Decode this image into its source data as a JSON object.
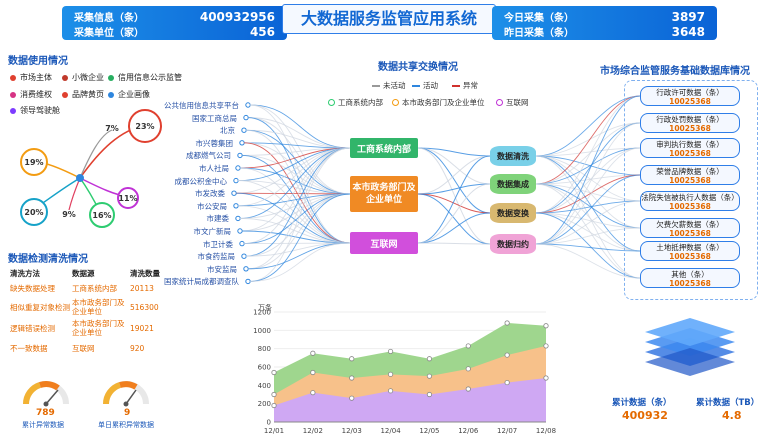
{
  "header": {
    "title": "大数据服务监管应用系统",
    "left": [
      {
        "label": "采集信息（条）",
        "value": "400932956"
      },
      {
        "label": "采集单位（家）",
        "value": "456"
      }
    ],
    "right": [
      {
        "label": "今日采集（条）",
        "value": "3897"
      },
      {
        "label": "昨日采集（条）",
        "value": "3648"
      }
    ]
  },
  "usage": {
    "title": "数据使用情况",
    "legend": [
      {
        "label": "市场主体",
        "color": "#e0402f"
      },
      {
        "label": "小微企业",
        "color": "#c0392b"
      },
      {
        "label": "信用信息公示监管",
        "color": "#27ae60"
      },
      {
        "label": "消费维权",
        "color": "#d63384"
      },
      {
        "label": "品牌黄页",
        "color": "#e0402f"
      },
      {
        "label": "企业画像",
        "color": "#2e86de"
      },
      {
        "label": "领导驾驶舱",
        "color": "#7d3cff"
      }
    ],
    "bubbles": [
      {
        "pct": "23%",
        "color": "#e0402f"
      },
      {
        "pct": "7%",
        "color": "#999999"
      },
      {
        "pct": "19%",
        "color": "#f39c12"
      },
      {
        "pct": "11%",
        "color": "#c032d6"
      },
      {
        "pct": "20%",
        "color": "#16a2c8"
      },
      {
        "pct": "9%",
        "color": "#e04060"
      },
      {
        "pct": "16%",
        "color": "#2ecc71"
      }
    ]
  },
  "cleaning": {
    "title": "数据检测清洗情况",
    "headers": [
      "清洗方法",
      "数据源",
      "清洗数量"
    ],
    "rows": [
      {
        "method": "缺失数据处理",
        "source": "工商系统内部",
        "count": "20113"
      },
      {
        "method": "相似重复对象检测",
        "source": "本市政务部门及企业单位",
        "count": "516300"
      },
      {
        "method": "逻辑错误检测",
        "source": "本市政务部门及企业单位",
        "count": "19021"
      },
      {
        "method": "不一致数据",
        "source": "互联网",
        "count": "920"
      }
    ],
    "gauges": [
      {
        "value": "789",
        "label": "累计异常数据"
      },
      {
        "value": "9",
        "label": "单日累积异常数据"
      }
    ]
  },
  "exchange": {
    "title": "数据共享交换情况",
    "status_legend": [
      {
        "label": "未活动",
        "color": "#999999"
      },
      {
        "label": "活动",
        "color": "#2e86de"
      },
      {
        "label": "异常",
        "color": "#d0312d"
      }
    ],
    "category_legend": [
      {
        "label": "工商系统内部",
        "color": "#2ecc71"
      },
      {
        "label": "本市政务部门及企业单位",
        "color": "#f39c12"
      },
      {
        "label": "互联网",
        "color": "#c032d6"
      }
    ],
    "sources": [
      "公共信用信息共享平台",
      "国家工商总局",
      "北京",
      "市兴蓉集团",
      "成都燃气公司",
      "市人社局",
      "成都公积金中心",
      "市发改委",
      "市公安局",
      "市建委",
      "市文广新局",
      "市卫计委",
      "市食药监局",
      "市安监局",
      "国家统计局成都调查队"
    ],
    "categories": [
      {
        "label": "工商系统内部",
        "color": "#31b56a"
      },
      {
        "label": "本市政务部门及企业单位",
        "color": "#f08a24"
      },
      {
        "label": "互联网",
        "color": "#d14fdc"
      }
    ],
    "stages": [
      "数据清洗",
      "数据集成",
      "数据变换",
      "数据归约"
    ]
  },
  "market": {
    "title": "市场综合监管服务基础数据库情况",
    "cards": [
      {
        "label": "行政许可数据（条）",
        "value": "10025368"
      },
      {
        "label": "行政处罚数据（条）",
        "value": "10025368"
      },
      {
        "label": "审判执行数据（条）",
        "value": "10025368"
      },
      {
        "label": "荣誉品牌数据（条）",
        "value": "10025368"
      },
      {
        "label": "法院失信被执行人数据（条）",
        "value": "10025368"
      },
      {
        "label": "欠费欠薪数据（条）",
        "value": "10025368"
      },
      {
        "label": "土地抵押数据（条）",
        "value": "10025368"
      },
      {
        "label": "其他（条）",
        "value": "10025368"
      }
    ],
    "totals": [
      {
        "label": "累计数据（条）",
        "value": "400932"
      },
      {
        "label": "累计数据（TB）",
        "value": "4.8"
      }
    ]
  },
  "chart_data": {
    "type": "area",
    "unit_label": "万条",
    "x": [
      "12/01",
      "12/02",
      "12/03",
      "12/04",
      "12/05",
      "12/06",
      "12/07",
      "12/08"
    ],
    "ylim": [
      0,
      1200
    ],
    "yticks": [
      0,
      200,
      400,
      600,
      800,
      1000,
      1200
    ],
    "series": [
      {
        "color": "#cfa8f3",
        "values": [
          180,
          320,
          260,
          340,
          300,
          360,
          430,
          480
        ]
      },
      {
        "color": "#f7c18a",
        "values": [
          300,
          540,
          480,
          520,
          500,
          580,
          730,
          830
        ]
      },
      {
        "color": "#9fd68e",
        "values": [
          540,
          750,
          690,
          770,
          690,
          830,
          1080,
          1050
        ]
      }
    ]
  }
}
